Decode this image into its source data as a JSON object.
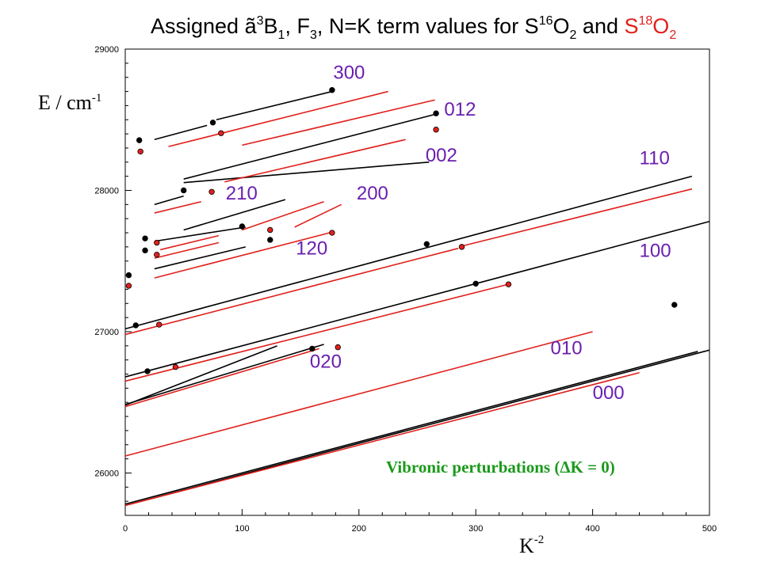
{
  "chart_data": {
    "type": "line",
    "title": {
      "parts": [
        {
          "t": "Assigned ",
          "c": "black"
        },
        {
          "t": "ã",
          "c": "black"
        },
        {
          "t": "3",
          "c": "black",
          "sup": true
        },
        {
          "t": "B",
          "c": "black"
        },
        {
          "t": "1",
          "c": "black",
          "sub": true
        },
        {
          "t": ", F",
          "c": "black"
        },
        {
          "t": "3",
          "c": "black",
          "sub": true
        },
        {
          "t": ", N=K term values for S",
          "c": "black"
        },
        {
          "t": "16",
          "c": "black",
          "sup": true
        },
        {
          "t": "O",
          "c": "black"
        },
        {
          "t": "2",
          "c": "black",
          "sub": true
        },
        {
          "t": " and ",
          "c": "black"
        },
        {
          "t": "S",
          "c": "#e0201c"
        },
        {
          "t": "18",
          "c": "#e0201c",
          "sup": true
        },
        {
          "t": "O",
          "c": "#e0201c"
        },
        {
          "t": "2",
          "c": "#e0201c",
          "sub": true
        }
      ]
    },
    "ylabel": "E / cm",
    "ylabel_sup": "-1",
    "xlabel": "K",
    "xlabel_sup": "-2",
    "xlim": [
      0,
      500
    ],
    "ylim": [
      25700,
      29000
    ],
    "xticks": [
      0,
      100,
      200,
      300,
      400,
      500
    ],
    "yticks": [
      26000,
      27000,
      28000,
      29000
    ],
    "colors": {
      "S16O2": "#000000",
      "S18O2": "#e0201c",
      "band_label": "#6a1fb0",
      "annotation": "#1a9a1a"
    },
    "annotation": "Vibronic perturbations (ΔK = 0)",
    "band_labels": [
      {
        "text": "300",
        "x": 178,
        "y": 28790
      },
      {
        "text": "012",
        "x": 273,
        "y": 28530
      },
      {
        "text": "002",
        "x": 257,
        "y": 28205
      },
      {
        "text": "110",
        "x": 440,
        "y": 28185
      },
      {
        "text": "210",
        "x": 86,
        "y": 27935
      },
      {
        "text": "200",
        "x": 198,
        "y": 27935
      },
      {
        "text": "120",
        "x": 146,
        "y": 27545
      },
      {
        "text": "100",
        "x": 440,
        "y": 27530
      },
      {
        "text": "020",
        "x": 158,
        "y": 26745
      },
      {
        "text": "010",
        "x": 364,
        "y": 26840
      },
      {
        "text": "000",
        "x": 400,
        "y": 26525
      }
    ],
    "series": [
      {
        "isotope": "S16O2",
        "segments": [
          [
            [
              0,
              25770
            ],
            [
              500,
              26870
            ]
          ],
          [
            [
              0,
              26480
            ],
            [
              130,
              26900
            ]
          ],
          [
            [
              0,
              26680
            ],
            [
              500,
              27780
            ]
          ],
          [
            [
              0,
              27020
            ],
            [
              485,
              28100
            ]
          ],
          [
            [
              25,
              27445
            ],
            [
              103,
              27600
            ]
          ],
          [
            [
              25,
              27640
            ],
            [
              103,
              27740
            ]
          ],
          [
            [
              50,
              27720
            ],
            [
              137,
              27935
            ]
          ],
          [
            [
              25,
              27900
            ],
            [
              50,
              27960
            ]
          ],
          [
            [
              50,
              28055
            ],
            [
              260,
              28200
            ]
          ],
          [
            [
              25,
              28360
            ],
            [
              70,
              28460
            ]
          ],
          [
            [
              78,
              28500
            ],
            [
              177,
              28700
            ]
          ],
          [
            [
              50,
              28080
            ],
            [
              266,
              28540
            ]
          ],
          [
            [
              0,
              26485
            ],
            [
              170,
              26910
            ]
          ],
          [
            [
              0,
              25780
            ],
            [
              490,
              26860
            ]
          ]
        ]
      },
      {
        "isotope": "S18O2",
        "segments": [
          [
            [
              0,
              25770
            ],
            [
              440,
              26710
            ]
          ],
          [
            [
              0,
              26120
            ],
            [
              400,
              27000
            ]
          ],
          [
            [
              0,
              26470
            ],
            [
              166,
              26880
            ]
          ],
          [
            [
              0,
              26650
            ],
            [
              330,
              27340
            ]
          ],
          [
            [
              0,
              26980
            ],
            [
              285,
              27590
            ]
          ],
          [
            [
              290,
              27610
            ],
            [
              485,
              28010
            ]
          ],
          [
            [
              25,
              27380
            ],
            [
              175,
              27700
            ]
          ],
          [
            [
              25,
              27520
            ],
            [
              80,
              27630
            ]
          ],
          [
            [
              30,
              27580
            ],
            [
              80,
              27680
            ]
          ],
          [
            [
              100,
              27720
            ],
            [
              170,
              27920
            ]
          ],
          [
            [
              145,
              27740
            ],
            [
              185,
              27900
            ]
          ],
          [
            [
              25,
              27840
            ],
            [
              65,
              27920
            ]
          ],
          [
            [
              37,
              28310
            ],
            [
              225,
              28700
            ]
          ],
          [
            [
              85,
              28060
            ],
            [
              240,
              28360
            ]
          ],
          [
            [
              100,
              28320
            ],
            [
              265,
              28640
            ]
          ]
        ]
      }
    ],
    "points": [
      {
        "isotope": "S16O2",
        "x": 177,
        "y": 28710
      },
      {
        "isotope": "S16O2",
        "x": 266,
        "y": 28545
      },
      {
        "isotope": "S16O2",
        "x": 75,
        "y": 28480
      },
      {
        "isotope": "S16O2",
        "x": 12,
        "y": 28355
      },
      {
        "isotope": "S16O2",
        "x": 50,
        "y": 28000
      },
      {
        "isotope": "S16O2",
        "x": 17,
        "y": 27660
      },
      {
        "isotope": "S16O2",
        "x": 17,
        "y": 27575
      },
      {
        "isotope": "S16O2",
        "x": 100,
        "y": 27745
      },
      {
        "isotope": "S16O2",
        "x": 124,
        "y": 27650
      },
      {
        "isotope": "S16O2",
        "x": 3,
        "y": 27400
      },
      {
        "isotope": "S16O2",
        "x": 258,
        "y": 27620
      },
      {
        "isotope": "S16O2",
        "x": 9,
        "y": 27045
      },
      {
        "isotope": "S16O2",
        "x": 300,
        "y": 27340
      },
      {
        "isotope": "S16O2",
        "x": 470,
        "y": 27190
      },
      {
        "isotope": "S16O2",
        "x": 160,
        "y": 26880
      },
      {
        "isotope": "S16O2",
        "x": 19,
        "y": 26720
      },
      {
        "isotope": "S18O2",
        "x": 266,
        "y": 28430
      },
      {
        "isotope": "S18O2",
        "x": 13,
        "y": 28275
      },
      {
        "isotope": "S18O2",
        "x": 82,
        "y": 28405
      },
      {
        "isotope": "S18O2",
        "x": 74,
        "y": 27990
      },
      {
        "isotope": "S18O2",
        "x": 27,
        "y": 27630
      },
      {
        "isotope": "S18O2",
        "x": 27,
        "y": 27545
      },
      {
        "isotope": "S18O2",
        "x": 124,
        "y": 27720
      },
      {
        "isotope": "S18O2",
        "x": 177,
        "y": 27700
      },
      {
        "isotope": "S18O2",
        "x": 3,
        "y": 27325
      },
      {
        "isotope": "S18O2",
        "x": 288,
        "y": 27600
      },
      {
        "isotope": "S18O2",
        "x": 29,
        "y": 27050
      },
      {
        "isotope": "S18O2",
        "x": 328,
        "y": 27335
      },
      {
        "isotope": "S18O2",
        "x": 182,
        "y": 26890
      },
      {
        "isotope": "S18O2",
        "x": 43,
        "y": 26750
      }
    ]
  }
}
